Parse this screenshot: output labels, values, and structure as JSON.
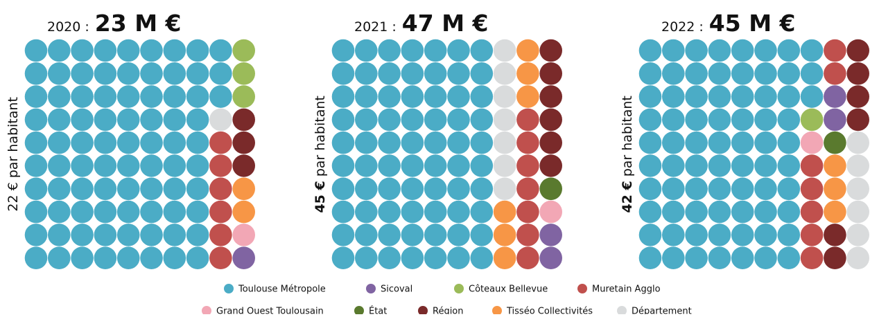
{
  "legend": [
    {
      "name": "Toulouse Métropole",
      "color": "#4bacc6"
    },
    {
      "name": "Sicoval",
      "color": "#8064a2"
    },
    {
      "name": "Côteaux Bellevue",
      "color": "#9bbb59"
    },
    {
      "name": "Muretain Agglo",
      "color": "#c0504d"
    },
    {
      "name": "Grand Ouest Toulousain",
      "color": "#f2a7b5"
    },
    {
      "name": "État",
      "color": "#5a7a2e"
    },
    {
      "name": "Région",
      "color": "#7a2a2a"
    },
    {
      "name": "Tisséo Collectivités",
      "color": "#f79646"
    },
    {
      "name": "Département",
      "color": "#d9dbdc"
    }
  ],
  "chart_data": [
    {
      "type": "waffle",
      "year": "2020 :",
      "title": "23 M €",
      "per_capita": "22 €",
      "per_capita_label": "par habitant",
      "values": [
        83,
        1,
        3,
        6,
        1,
        0,
        3,
        2,
        1
      ]
    },
    {
      "type": "waffle",
      "year": "2021 :",
      "title": "47 M €",
      "per_capita": "45 €",
      "per_capita_label": "par habitant",
      "values": [
        70,
        2,
        0,
        7,
        1,
        1,
        6,
        6,
        7
      ]
    },
    {
      "type": "waffle",
      "year": "2022 :",
      "title": "45 M €",
      "per_capita": "42 €",
      "per_capita_label": "par habitant",
      "values": [
        73,
        2,
        1,
        7,
        1,
        1,
        6,
        3,
        6
      ]
    }
  ]
}
